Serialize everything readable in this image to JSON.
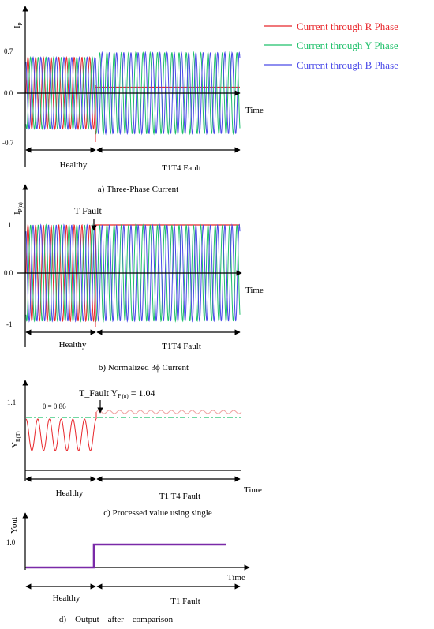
{
  "colors": {
    "r": "#e8262b",
    "y": "#1ec06a",
    "b": "#4a4ae8",
    "purple": "#7a2aa8",
    "axis": "#000000"
  },
  "chart_data": [
    {
      "id": "a",
      "type": "line",
      "caption": "a) Three-Phase Current",
      "ylabel_main": "I",
      "ylabel_sub": "P",
      "xlabel": "Time",
      "ticks": [
        "0.7",
        "0.0",
        "-0.7"
      ],
      "tick_values": [
        0.7,
        0.0,
        -0.7
      ],
      "segments": [
        {
          "label": "Healthy"
        },
        {
          "label": "T1T4 Fault"
        }
      ],
      "legend": [
        "Current through R Phase",
        "Current through Y Phase",
        "Current through B Phase"
      ],
      "series": [
        {
          "name": "Current through R Phase",
          "healthy_amplitude": 0.6,
          "fault": "dc",
          "fault_value": 0.1
        },
        {
          "name": "Current through Y Phase",
          "healthy_amplitude": 0.6,
          "fault_amplitude": 0.68
        },
        {
          "name": "Current through B Phase",
          "healthy_amplitude": 0.6,
          "fault_amplitude": 0.68
        }
      ],
      "healthy_cycles": 9,
      "fault_cycles": 20
    },
    {
      "id": "b",
      "type": "line",
      "caption": "b) Normalized 3ϕ Current",
      "ylabel_main": "I",
      "ylabel_sub": "P(n)",
      "xlabel": "Time",
      "annotation": "T  Fault",
      "ticks": [
        "1",
        "0.0",
        "-1"
      ],
      "tick_values": [
        1,
        0,
        -1
      ],
      "segments": [
        {
          "label": "Healthy"
        },
        {
          "label": "T1T4 Fault"
        }
      ],
      "series": [
        {
          "name": "Current through R Phase",
          "healthy_amplitude": 1,
          "fault": "dc",
          "fault_value": 1
        },
        {
          "name": "Current through Y Phase",
          "healthy_amplitude": 1,
          "fault_amplitude": 1
        },
        {
          "name": "Current through B Phase",
          "healthy_amplitude": 1,
          "fault_amplitude": 1
        }
      ],
      "healthy_cycles": 9,
      "fault_cycles": 20
    },
    {
      "id": "c",
      "type": "line",
      "caption": "c) Processed value using single",
      "ylabel_main": "Y",
      "ylabel_sub": "R(T)",
      "xlabel": "Time",
      "ticks": [
        "1.1"
      ],
      "theta_label": "θ = 0.86",
      "annotation_main": "T_Fault Y",
      "annotation_sub": "P (n)",
      "annotation_tail": " = 1.04",
      "segments": [
        {
          "label": "Healthy"
        },
        {
          "label": "T1 T4 Fault"
        }
      ],
      "healthy_mean": 0.86,
      "fault_value": 1.04,
      "threshold": "dash-dot",
      "healthy_cycles": 6,
      "fault_cycles": 14
    },
    {
      "id": "d",
      "type": "line",
      "caption": "d)    Output    after    comparison",
      "ylabel": "Yout",
      "xlabel": "Time",
      "ticks": [
        "1.0"
      ],
      "segments": [
        {
          "label": "Healthy"
        },
        {
          "label": "T1 Fault"
        }
      ],
      "output_steps": [
        {
          "phase": "Healthy",
          "value": 0
        },
        {
          "phase": "Fault",
          "value": 1
        }
      ]
    }
  ]
}
